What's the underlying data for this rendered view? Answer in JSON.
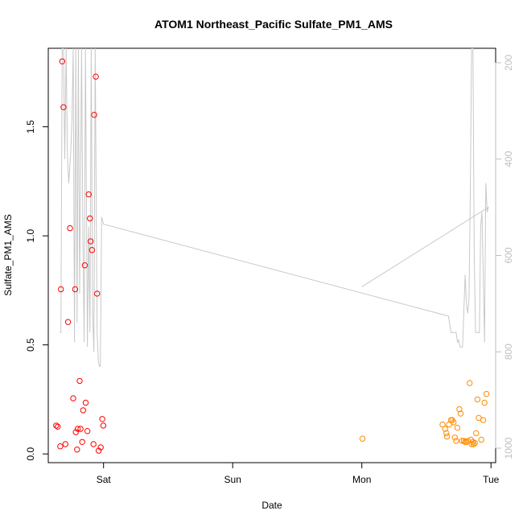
{
  "chart_data": {
    "type": "scatter",
    "title": "ATOM1 Northeast_Pacific Sulfate_PM1_AMS",
    "xlabel": "Date",
    "ylabel": "Sulfate_PM1_AMS",
    "x_unit": "days",
    "x_ticks": [
      {
        "label": "Sat",
        "value": 1
      },
      {
        "label": "Sun",
        "value": 2
      },
      {
        "label": "Mon",
        "value": 3
      },
      {
        "label": "Tue",
        "value": 4
      }
    ],
    "y_ticks": [
      "0.0",
      "0.5",
      "1.0",
      "1.5"
    ],
    "y_tick_values": [
      0.0,
      0.5,
      1.0,
      1.5
    ],
    "xlim": [
      0.572,
      4.036
    ],
    "ylim": [
      -0.04,
      1.86
    ],
    "y2_ticks": [
      "200",
      "400",
      "600",
      "800",
      "1000"
    ],
    "y2_tick_values": [
      200,
      400,
      600,
      800,
      1000
    ],
    "y2lim": [
      1030,
      170
    ],
    "y2_reversed": true,
    "y2_color": "#bfbfbf",
    "grid": false,
    "legend": "none",
    "series": [
      {
        "color": "#ff0000",
        "marker": "open-circle",
        "points": [
          [
            0.633,
            0.13
          ],
          [
            0.645,
            0.125
          ],
          [
            0.665,
            0.035
          ],
          [
            0.67,
            0.755
          ],
          [
            0.68,
            1.8
          ],
          [
            0.69,
            1.59
          ],
          [
            0.705,
            0.045
          ],
          [
            0.725,
            0.605
          ],
          [
            0.74,
            1.035
          ],
          [
            0.765,
            0.255
          ],
          [
            0.78,
            0.755
          ],
          [
            0.785,
            0.1
          ],
          [
            0.795,
            0.02
          ],
          [
            0.8,
            0.115
          ],
          [
            0.815,
            0.335
          ],
          [
            0.822,
            0.115
          ],
          [
            0.835,
            0.055
          ],
          [
            0.842,
            0.2
          ],
          [
            0.855,
            0.865
          ],
          [
            0.862,
            0.235
          ],
          [
            0.875,
            0.105
          ],
          [
            0.885,
            1.19
          ],
          [
            0.895,
            1.08
          ],
          [
            0.9,
            0.975
          ],
          [
            0.91,
            0.935
          ],
          [
            0.922,
            0.045
          ],
          [
            0.928,
            1.555
          ],
          [
            0.94,
            1.73
          ],
          [
            0.95,
            0.735
          ],
          [
            0.962,
            0.015
          ],
          [
            0.978,
            0.03
          ],
          [
            0.99,
            0.16
          ],
          [
            0.998,
            0.13
          ]
        ]
      },
      {
        "color": "#ff8c00",
        "marker": "open-circle",
        "points": [
          [
            3.005,
            0.07
          ],
          [
            3.625,
            0.135
          ],
          [
            3.645,
            0.115
          ],
          [
            3.655,
            0.095
          ],
          [
            3.66,
            0.08
          ],
          [
            3.675,
            0.135
          ],
          [
            3.69,
            0.155
          ],
          [
            3.7,
            0.155
          ],
          [
            3.71,
            0.145
          ],
          [
            3.72,
            0.075
          ],
          [
            3.73,
            0.06
          ],
          [
            3.74,
            0.12
          ],
          [
            3.755,
            0.205
          ],
          [
            3.765,
            0.185
          ],
          [
            3.775,
            0.06
          ],
          [
            3.79,
            0.06
          ],
          [
            3.8,
            0.055
          ],
          [
            3.81,
            0.055
          ],
          [
            3.82,
            0.06
          ],
          [
            3.835,
            0.325
          ],
          [
            3.845,
            0.065
          ],
          [
            3.85,
            0.045
          ],
          [
            3.86,
            0.055
          ],
          [
            3.865,
            0.045
          ],
          [
            3.875,
            0.05
          ],
          [
            3.885,
            0.095
          ],
          [
            3.895,
            0.25
          ],
          [
            3.905,
            0.165
          ],
          [
            3.925,
            0.065
          ],
          [
            3.94,
            0.155
          ],
          [
            3.95,
            0.235
          ],
          [
            3.965,
            0.275
          ]
        ]
      }
    ],
    "line_series": {
      "axis": "right",
      "color": "#c8c8c8",
      "points": [
        [
          0.66,
          760
        ],
        [
          0.67,
          760
        ],
        [
          0.68,
          170
        ],
        [
          0.69,
          170
        ],
        [
          0.7,
          400
        ],
        [
          0.71,
          170
        ],
        [
          0.72,
          390
        ],
        [
          0.73,
          450
        ],
        [
          0.745,
          390
        ],
        [
          0.755,
          320
        ],
        [
          0.765,
          170
        ],
        [
          0.775,
          780
        ],
        [
          0.785,
          170
        ],
        [
          0.795,
          740
        ],
        [
          0.805,
          170
        ],
        [
          0.815,
          680
        ],
        [
          0.83,
          170
        ],
        [
          0.84,
          560
        ],
        [
          0.85,
          780
        ],
        [
          0.86,
          170
        ],
        [
          0.875,
          790
        ],
        [
          0.885,
          540
        ],
        [
          0.895,
          760
        ],
        [
          0.905,
          170
        ],
        [
          0.915,
          720
        ],
        [
          0.925,
          800
        ],
        [
          0.935,
          170
        ],
        [
          0.95,
          760
        ],
        [
          0.96,
          820
        ],
        [
          0.968,
          830
        ],
        [
          0.975,
          830
        ],
        [
          0.985,
          520
        ],
        [
          1.0,
          535
        ],
        [
          3.66,
          725
        ],
        [
          3.67,
          725
        ],
        [
          3.69,
          760
        ],
        [
          3.73,
          760
        ],
        [
          3.74,
          780
        ],
        [
          3.75,
          775
        ],
        [
          3.76,
          790
        ],
        [
          3.78,
          790
        ],
        [
          3.8,
          640
        ],
        [
          3.81,
          700
        ],
        [
          3.82,
          720
        ],
        [
          3.83,
          690
        ],
        [
          3.84,
          470
        ],
        [
          3.85,
          170
        ],
        [
          3.86,
          170
        ],
        [
          3.87,
          600
        ],
        [
          3.88,
          760
        ],
        [
          3.89,
          760
        ],
        [
          3.91,
          760
        ],
        [
          3.92,
          540
        ],
        [
          3.93,
          510
        ],
        [
          3.94,
          640
        ],
        [
          3.95,
          780
        ],
        [
          3.96,
          450
        ],
        [
          3.97,
          510
        ],
        [
          3.98,
          500
        ],
        [
          3.0,
          665
        ]
      ]
    }
  }
}
